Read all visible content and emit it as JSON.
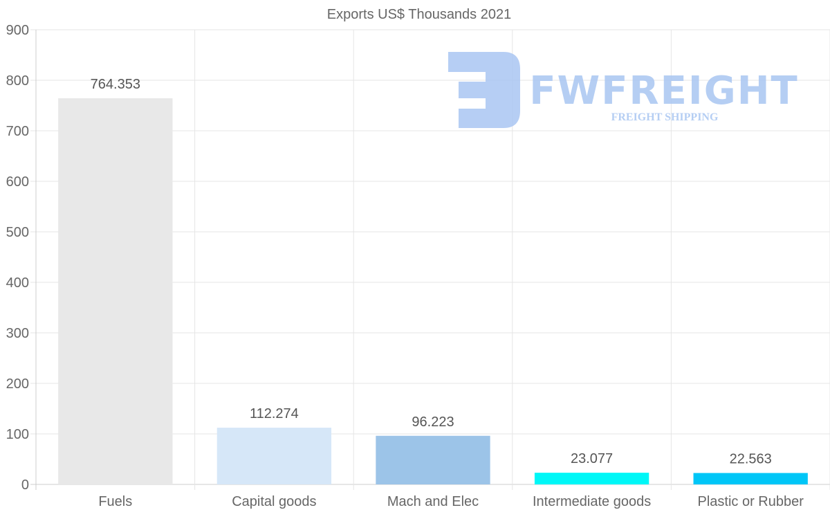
{
  "chart_data": {
    "type": "bar",
    "title": "Exports US$ Thousands 2021",
    "xlabel": "",
    "ylabel": "",
    "categories": [
      "Fuels",
      "Capital goods",
      "Mach and Elec",
      "Intermediate goods",
      "Plastic or Rubber"
    ],
    "values": [
      764.353,
      112.274,
      96.223,
      23.077,
      22.563
    ],
    "value_labels": [
      "764.353",
      "112.274",
      "96.223",
      "23.077",
      "22.563"
    ],
    "colors": [
      "#e8e8e8",
      "#d6e7f8",
      "#9cc4e8",
      "#00f7f7",
      "#00c6f7"
    ],
    "ylim": [
      0,
      900
    ],
    "yticks": [
      0,
      100,
      200,
      300,
      400,
      500,
      600,
      700,
      800,
      900
    ],
    "grid": true,
    "legend": "none"
  },
  "watermark": {
    "brand": "FWFREIGHT",
    "tagline": "FREIGHT SHIPPING",
    "color": "#a9c6f2"
  }
}
